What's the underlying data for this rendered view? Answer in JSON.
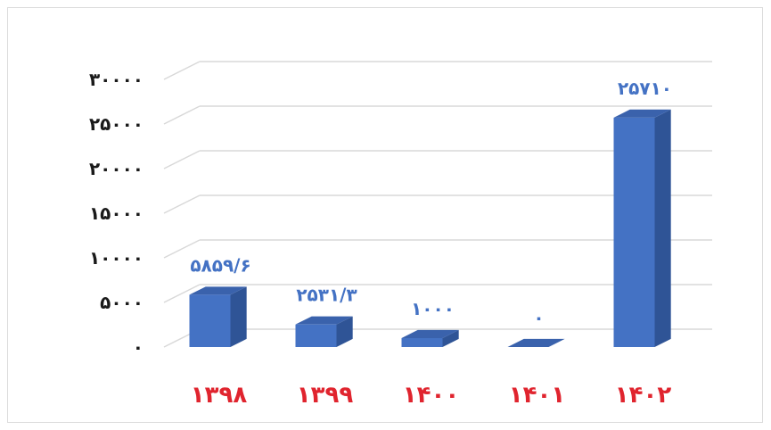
{
  "chart_data": {
    "type": "bar",
    "title": "",
    "xlabel": "",
    "ylabel": "",
    "categories": [
      "۱۳۹۸",
      "۱۳۹۹",
      "۱۴۰۰",
      "۱۴۰۱",
      "۱۴۰۲"
    ],
    "values": [
      5859.6,
      2531.3,
      1000,
      0,
      25710
    ],
    "data_labels": [
      "۵۸۵۹/۶",
      "۲۵۳۱/۳",
      "۱۰۰۰",
      "۰",
      "۲۵۷۱۰"
    ],
    "y_ticks": [
      0,
      5000,
      10000,
      15000,
      20000,
      25000,
      30000
    ],
    "y_tick_labels": [
      "۰",
      "۵۰۰۰",
      "۱۰۰۰۰",
      "۱۵۰۰۰",
      "۲۰۰۰۰",
      "۲۵۰۰۰",
      "۳۰۰۰۰"
    ],
    "ylim": [
      0,
      30000
    ],
    "grid": true,
    "style": "3d-bar",
    "colors": {
      "bar_front": "#4472c4",
      "bar_top": "#3a62ac",
      "bar_side": "#2f5496",
      "gridline": "#d9d9d9",
      "data_label": "#4472c4",
      "category_label": "#e0242e",
      "tick_label": "#1a1a1a"
    }
  }
}
